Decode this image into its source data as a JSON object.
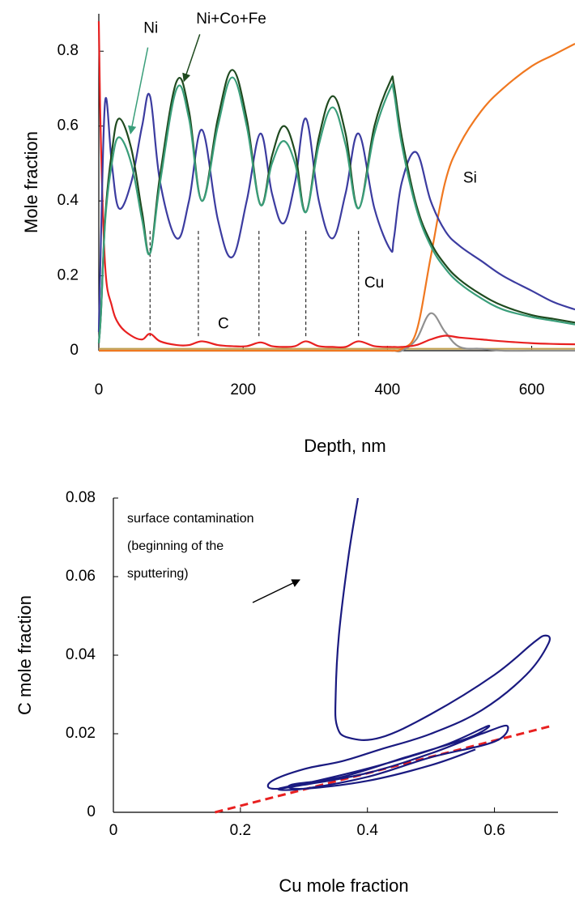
{
  "chart_data": [
    {
      "type": "line",
      "xlabel": "Depth, nm",
      "ylabel": "Mole fraction",
      "xlim": [
        0,
        660
      ],
      "ylim": [
        0,
        0.9
      ],
      "xticks": [
        0,
        200,
        400,
        600
      ],
      "yticks": [
        0,
        0.2,
        0.4,
        0.6,
        0.8
      ],
      "vlines": [
        71,
        138,
        222,
        287,
        360
      ],
      "x": [
        0,
        3,
        9,
        18,
        28,
        45,
        60,
        71,
        85,
        108,
        125,
        143,
        165,
        185,
        205,
        224,
        240,
        256,
        272,
        287,
        305,
        324,
        342,
        360,
        382,
        404,
        409,
        420,
        440,
        460,
        480,
        500,
        530,
        560,
        600,
        630,
        660
      ],
      "series": [
        {
          "name": "Ni",
          "color": "#3a9e7a",
          "values": [
            0.02,
            0.1,
            0.35,
            0.5,
            0.57,
            0.5,
            0.35,
            0.26,
            0.45,
            0.7,
            0.62,
            0.4,
            0.6,
            0.73,
            0.6,
            0.39,
            0.5,
            0.56,
            0.5,
            0.37,
            0.55,
            0.65,
            0.55,
            0.38,
            0.58,
            0.7,
            0.69,
            0.55,
            0.38,
            0.28,
            0.22,
            0.18,
            0.14,
            0.11,
            0.09,
            0.08,
            0.07
          ]
        },
        {
          "name": "Ni+Co+Fe",
          "color": "#1f4a1f",
          "values": [
            0.02,
            0.1,
            0.36,
            0.53,
            0.62,
            0.54,
            0.37,
            0.26,
            0.47,
            0.72,
            0.64,
            0.4,
            0.62,
            0.75,
            0.62,
            0.39,
            0.52,
            0.6,
            0.53,
            0.37,
            0.57,
            0.68,
            0.58,
            0.38,
            0.6,
            0.72,
            0.71,
            0.57,
            0.39,
            0.29,
            0.23,
            0.19,
            0.15,
            0.12,
            0.095,
            0.085,
            0.075
          ]
        },
        {
          "name": "Cu",
          "color": "#3c3ca0",
          "values": [
            0.05,
            0.3,
            0.67,
            0.5,
            0.38,
            0.45,
            0.6,
            0.68,
            0.45,
            0.3,
            0.4,
            0.59,
            0.35,
            0.25,
            0.4,
            0.58,
            0.42,
            0.34,
            0.45,
            0.62,
            0.4,
            0.3,
            0.42,
            0.58,
            0.38,
            0.27,
            0.3,
            0.45,
            0.53,
            0.4,
            0.32,
            0.28,
            0.24,
            0.2,
            0.16,
            0.13,
            0.11
          ]
        },
        {
          "name": "C",
          "color": "#e82020",
          "values": [
            0.88,
            0.55,
            0.22,
            0.12,
            0.07,
            0.04,
            0.03,
            0.045,
            0.025,
            0.015,
            0.015,
            0.025,
            0.015,
            0.012,
            0.012,
            0.022,
            0.012,
            0.01,
            0.012,
            0.025,
            0.012,
            0.01,
            0.01,
            0.025,
            0.012,
            0.01,
            0.01,
            0.01,
            0.015,
            0.03,
            0.04,
            0.035,
            0.03,
            0.025,
            0.02,
            0.018,
            0.017
          ]
        },
        {
          "name": "Si",
          "color": "#f07820",
          "values": [
            0,
            0,
            0,
            0,
            0,
            0,
            0,
            0,
            0,
            0,
            0,
            0,
            0,
            0,
            0,
            0,
            0,
            0,
            0,
            0,
            0,
            0,
            0,
            0,
            0,
            0,
            0,
            0.005,
            0.05,
            0.25,
            0.45,
            0.55,
            0.64,
            0.7,
            0.76,
            0.79,
            0.82
          ]
        },
        {
          "color": "#909090",
          "values": [
            0,
            0,
            0,
            0,
            0,
            0,
            0,
            0,
            0,
            0,
            0,
            0,
            0,
            0,
            0,
            0,
            0,
            0,
            0,
            0,
            0,
            0,
            0,
            0,
            0,
            0,
            0,
            0,
            0.03,
            0.1,
            0.05,
            0.01,
            0.005,
            0,
            0,
            0,
            0
          ]
        },
        {
          "color": "#c0a050",
          "values": [
            0.005,
            0.005,
            0.005,
            0.005,
            0.005,
            0.005,
            0.005,
            0.005,
            0.005,
            0.005,
            0.005,
            0.005,
            0.005,
            0.005,
            0.005,
            0.005,
            0.005,
            0.005,
            0.005,
            0.005,
            0.005,
            0.005,
            0.005,
            0.005,
            0.005,
            0.005,
            0.005,
            0.005,
            0.005,
            0.005,
            0.005,
            0.005,
            0.005,
            0.005,
            0.005,
            0.005,
            0.005
          ]
        }
      ]
    },
    {
      "type": "line",
      "xlabel": "Cu mole fraction",
      "ylabel": "C mole fraction",
      "xlim": [
        0,
        0.7
      ],
      "ylim": [
        0,
        0.08
      ],
      "xticks": [
        0,
        0.2,
        0.4,
        0.6
      ],
      "yticks": [
        0,
        0.02,
        0.04,
        0.06,
        0.08
      ],
      "annotation": [
        "surface contamination",
        "(beginning of the",
        "sputtering)"
      ],
      "series": [
        {
          "color": "#1a1a80",
          "x": [
            0.385,
            0.37,
            0.355,
            0.35,
            0.352,
            0.37,
            0.42,
            0.5,
            0.6,
            0.66,
            0.68,
            0.685,
            0.65,
            0.58,
            0.5,
            0.42,
            0.36,
            0.3,
            0.25,
            0.25,
            0.3,
            0.4,
            0.5,
            0.58,
            0.62,
            0.6,
            0.5,
            0.4,
            0.3,
            0.26,
            0.32,
            0.42,
            0.52,
            0.59,
            0.56,
            0.46,
            0.36,
            0.28,
            0.3,
            0.4,
            0.5,
            0.57
          ],
          "values": [
            0.08,
            0.065,
            0.045,
            0.03,
            0.022,
            0.019,
            0.019,
            0.025,
            0.035,
            0.043,
            0.045,
            0.043,
            0.035,
            0.026,
            0.02,
            0.016,
            0.013,
            0.011,
            0.008,
            0.006,
            0.007,
            0.01,
            0.015,
            0.02,
            0.022,
            0.018,
            0.014,
            0.009,
            0.006,
            0.006,
            0.008,
            0.012,
            0.017,
            0.022,
            0.019,
            0.014,
            0.009,
            0.007,
            0.006,
            0.008,
            0.012,
            0.016
          ]
        },
        {
          "color": "#e82020",
          "dashed": true,
          "x": [
            0.16,
            0.69
          ],
          "values": [
            0,
            0.022
          ]
        }
      ]
    }
  ]
}
